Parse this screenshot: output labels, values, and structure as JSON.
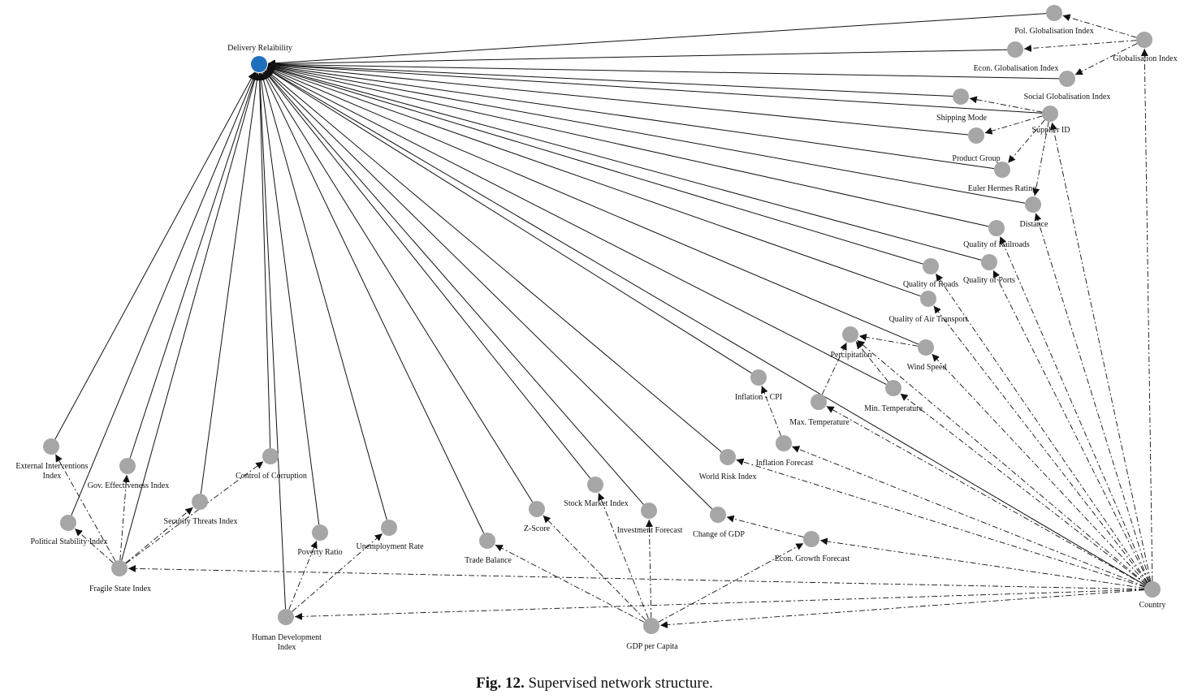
{
  "caption": {
    "fig": "Fig. 12.",
    "text": "Supervised network structure."
  },
  "colors": {
    "target": "#1f6fbf",
    "node": "#a6a6a6",
    "edge": "#111111"
  },
  "target": "Delivery Relaibility",
  "nodes": [
    {
      "id": "delivery",
      "label": "Delivery Relaibility",
      "role": "target"
    },
    {
      "id": "pol_glob",
      "label": "Pol. Globalisation Index"
    },
    {
      "id": "glob",
      "label": "Globalisation Index"
    },
    {
      "id": "econ_glob",
      "label": "Econ. Globalisation Index"
    },
    {
      "id": "soc_glob",
      "label": "Social Globalisation Index"
    },
    {
      "id": "shipping",
      "label": "Shipping Mode"
    },
    {
      "id": "supplier",
      "label": "Supplier ID"
    },
    {
      "id": "product",
      "label": "Product Group"
    },
    {
      "id": "euler",
      "label": "Euler Hermes Rating"
    },
    {
      "id": "distance",
      "label": "Distance"
    },
    {
      "id": "railroads",
      "label": "Quality of Railroads"
    },
    {
      "id": "ports",
      "label": "Quality of Ports"
    },
    {
      "id": "roads",
      "label": "Quality of Roads"
    },
    {
      "id": "air",
      "label": "Quality of Air Transport"
    },
    {
      "id": "precip",
      "label": "Percipitation"
    },
    {
      "id": "wind",
      "label": "Wind Speed"
    },
    {
      "id": "cpi",
      "label": "Inflation - CPI"
    },
    {
      "id": "min_temp",
      "label": "Min. Temperature"
    },
    {
      "id": "max_temp",
      "label": "Max. Temperature"
    },
    {
      "id": "infl_fc",
      "label": "Inflation Forecast"
    },
    {
      "id": "world_risk",
      "label": "World Risk Index"
    },
    {
      "id": "ext_int",
      "label": "External Interventions Index"
    },
    {
      "id": "gov_eff",
      "label": "Gov. Effectiveness Index"
    },
    {
      "id": "corruption",
      "label": "Control of Corruption"
    },
    {
      "id": "security",
      "label": "Security Threats Index"
    },
    {
      "id": "pol_stab",
      "label": "Political Stability Index"
    },
    {
      "id": "fragile",
      "label": "Fragile State Index"
    },
    {
      "id": "poverty",
      "label": "Poverty Ratio"
    },
    {
      "id": "unemp",
      "label": "Unemployment Rate"
    },
    {
      "id": "hdi",
      "label": "Human Development Index"
    },
    {
      "id": "trade",
      "label": "Trade Balance"
    },
    {
      "id": "zscore",
      "label": "Z-Score"
    },
    {
      "id": "stock",
      "label": "Stock Market Index"
    },
    {
      "id": "invest",
      "label": "Investment Forecast"
    },
    {
      "id": "gdp_change",
      "label": "Change of GDP"
    },
    {
      "id": "econ_growth",
      "label": "Econ. Growth Forecast"
    },
    {
      "id": "gdp_pc",
      "label": "GDP per Capita"
    },
    {
      "id": "country",
      "label": "Country"
    }
  ],
  "edges_solid_to_target": [
    "pol_glob",
    "econ_glob",
    "soc_glob",
    "shipping",
    "product",
    "euler",
    "distance",
    "railroads",
    "ports",
    "roads",
    "air",
    "wind",
    "cpi",
    "min_temp",
    "world_risk",
    "ext_int",
    "gov_eff",
    "corruption",
    "security",
    "pol_stab",
    "fragile",
    "poverty",
    "unemp",
    "hdi",
    "trade",
    "zscore",
    "stock",
    "invest",
    "gdp_change",
    "country",
    "supplier"
  ],
  "edges_dashed": [
    [
      "glob",
      "pol_glob"
    ],
    [
      "glob",
      "econ_glob"
    ],
    [
      "glob",
      "soc_glob"
    ],
    [
      "supplier",
      "shipping"
    ],
    [
      "supplier",
      "product"
    ],
    [
      "supplier",
      "euler"
    ],
    [
      "supplier",
      "distance"
    ],
    [
      "country",
      "glob"
    ],
    [
      "country",
      "supplier"
    ],
    [
      "country",
      "distance"
    ],
    [
      "country",
      "railroads"
    ],
    [
      "country",
      "ports"
    ],
    [
      "country",
      "roads"
    ],
    [
      "country",
      "air"
    ],
    [
      "country",
      "precip"
    ],
    [
      "country",
      "wind"
    ],
    [
      "country",
      "min_temp"
    ],
    [
      "country",
      "max_temp"
    ],
    [
      "country",
      "infl_fc"
    ],
    [
      "country",
      "world_risk"
    ],
    [
      "country",
      "econ_growth"
    ],
    [
      "country",
      "gdp_pc"
    ],
    [
      "country",
      "fragile"
    ],
    [
      "country",
      "hdi"
    ],
    [
      "wind",
      "precip"
    ],
    [
      "min_temp",
      "precip"
    ],
    [
      "max_temp",
      "precip"
    ],
    [
      "infl_fc",
      "cpi"
    ],
    [
      "econ_growth",
      "gdp_change"
    ],
    [
      "gdp_pc",
      "trade"
    ],
    [
      "gdp_pc",
      "zscore"
    ],
    [
      "gdp_pc",
      "stock"
    ],
    [
      "gdp_pc",
      "invest"
    ],
    [
      "gdp_pc",
      "econ_growth"
    ],
    [
      "fragile",
      "ext_int"
    ],
    [
      "fragile",
      "gov_eff"
    ],
    [
      "fragile",
      "corruption"
    ],
    [
      "fragile",
      "security"
    ],
    [
      "fragile",
      "pol_stab"
    ],
    [
      "hdi",
      "poverty"
    ],
    [
      "hdi",
      "unemp"
    ]
  ]
}
